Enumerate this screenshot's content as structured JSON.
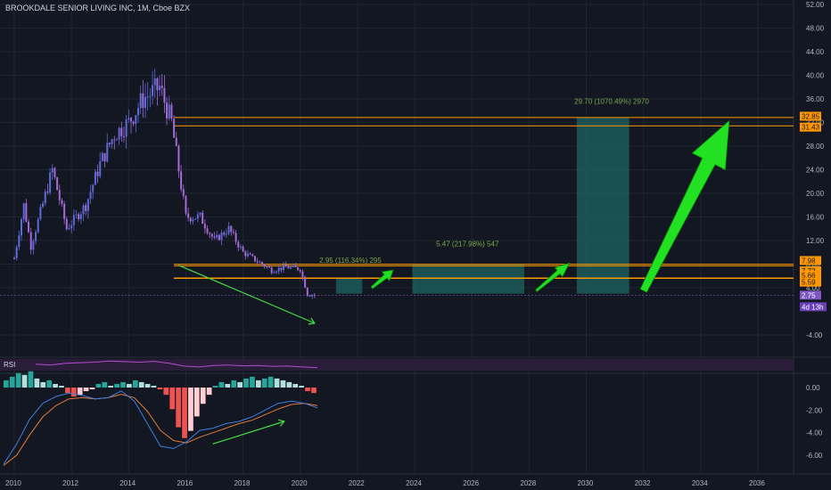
{
  "header": {
    "title": "BROOKDALE SENIOR LIVING INC, 1M, Cboe BZX"
  },
  "colors": {
    "background": "#131722",
    "candle_up": "#5b6bd8",
    "candle_down": "#a56ad6",
    "hline": "#ff9800",
    "box": "#1e6e6a",
    "arrow": "#22e022",
    "divergence": "#44dd44",
    "rsi_line": "#b34bd0",
    "macd_line": "#3d7fe0",
    "signal_line": "#e07b39",
    "hist_pos": "#26a69a",
    "hist_neg": "#ef5350",
    "hist_pos_light": "#b2dfdb",
    "hist_neg_light": "#ffcdd2"
  },
  "chart_data": [
    {
      "type": "candlestick",
      "pane": "price",
      "title": "BROOKDALE SENIOR LIVING INC, 1M, Cboe BZX",
      "x_ticks": [
        "2010",
        "2012",
        "2014",
        "2016",
        "2018",
        "2020",
        "2022",
        "2024",
        "2026",
        "2028",
        "2030",
        "2032",
        "2034",
        "2036"
      ],
      "y_ticks": [
        "52.00",
        "48.00",
        "44.00",
        "40.00",
        "36.00",
        "32.00",
        "28.00",
        "24.00",
        "20.00",
        "16.00",
        "12.00",
        "8.00",
        "4.00",
        "-4.00"
      ],
      "ylim": [
        -6,
        52
      ],
      "price_path": [
        [
          "2009-12",
          9
        ],
        [
          "2010-04",
          18
        ],
        [
          "2010-07",
          11
        ],
        [
          "2011-04",
          24
        ],
        [
          "2011-10",
          14
        ],
        [
          "2012-06",
          18
        ],
        [
          "2012-12",
          25
        ],
        [
          "2013-06",
          30
        ],
        [
          "2013-12",
          32
        ],
        [
          "2014-06",
          36
        ],
        [
          "2015-01",
          38
        ],
        [
          "2015-06",
          32
        ],
        [
          "2015-12",
          16
        ],
        [
          "2016-06",
          16
        ],
        [
          "2016-12",
          12
        ],
        [
          "2017-06",
          14
        ],
        [
          "2017-12",
          10
        ],
        [
          "2018-06",
          8.5
        ],
        [
          "2018-12",
          7
        ],
        [
          "2019-06",
          7.5
        ],
        [
          "2019-12",
          7.2
        ],
        [
          "2020-03",
          3
        ],
        [
          "2020-07",
          2.75
        ]
      ],
      "horizontal_lines": [
        32.85,
        31.43,
        7.98,
        7.72,
        5.66,
        5.59
      ],
      "price_tags": [
        {
          "text": "32.85",
          "value": 32.85,
          "color": "#ff9800"
        },
        {
          "text": "31.43",
          "value": 31.43,
          "color": "#ff9800"
        },
        {
          "text": "7.98",
          "value": 7.98,
          "color": "#ff9800"
        },
        {
          "text": "7.72",
          "value": 7.72,
          "color": "#ff9800"
        },
        {
          "text": "5.66",
          "value": 5.66,
          "color": "#ff9800"
        },
        {
          "text": "5.59",
          "value": 5.59,
          "color": "#ff9800"
        },
        {
          "text": "2.75",
          "value": 2.75,
          "color": "#7e57c2"
        }
      ],
      "countdown_tag": "4d 13h",
      "projection_boxes": [
        {
          "x0": "2021-03",
          "x1": "2022-02",
          "y0": 3.0,
          "y1": 5.6
        },
        {
          "x0": "2023-11",
          "x1": "2027-10",
          "y0": 3.0,
          "y1": 8.0
        },
        {
          "x0": "2029-08",
          "x1": "2031-06",
          "y0": 3.0,
          "y1": 32.8
        }
      ],
      "annotations": [
        {
          "text": "2.95 (116.34%) 295",
          "x": "2020-08",
          "y": 8.2
        },
        {
          "text": "5.47 (217.98%) 547",
          "x": "2024-09",
          "y": 11.0
        },
        {
          "text": "29.70 (1070.49%) 2970",
          "x": "2029-07",
          "y": 35.2
        }
      ],
      "arrows": [
        {
          "from": [
            "2022-06",
            4.0
          ],
          "to": [
            "2023-03",
            7.0
          ]
        },
        {
          "from": [
            "2028-03",
            3.5
          ],
          "to": [
            "2029-05",
            8.2
          ]
        },
        {
          "from": [
            "2032-00",
            3.5
          ],
          "to": [
            "2035-00",
            32.3
          ]
        }
      ],
      "divergence_line": {
        "from": [
          "2015-09",
          7.8
        ],
        "to": [
          "2020-06",
          -2.0
        ]
      }
    },
    {
      "type": "line",
      "pane": "rsi",
      "legend": "RSI",
      "series": [
        {
          "name": "RSI",
          "values": [
            55,
            52,
            58,
            60,
            62,
            66,
            64,
            62,
            65,
            58,
            48,
            45,
            50,
            52,
            49,
            50,
            47,
            48,
            45,
            42
          ]
        }
      ]
    },
    {
      "type": "bar+line",
      "pane": "macd",
      "y_ticks": [
        "0.00",
        "-2.00",
        "-4.00",
        "-6.00"
      ],
      "ylim": [
        -7.5,
        1.2
      ],
      "histogram": [
        0.4,
        0.6,
        0.8,
        0.7,
        0.9,
        0.5,
        0.3,
        0.4,
        0.2,
        0.1,
        -0.3,
        -0.5,
        -0.4,
        -0.2,
        -0.1,
        0.2,
        0.3,
        0.1,
        0.2,
        0.3,
        0.2,
        0.4,
        0.3,
        0.2,
        0.1,
        -0.1,
        -0.4,
        -1.2,
        -2.2,
        -2.8,
        -2.4,
        -1.6,
        -0.9,
        -0.4,
        0.1,
        0.3,
        0.2,
        0.4,
        0.3,
        0.5,
        0.6,
        0.4,
        0.5,
        0.6,
        0.5,
        0.4,
        0.3,
        0.2,
        0.1,
        -0.2,
        -0.3
      ],
      "macd_line": [
        -6.8,
        -5.0,
        -2.8,
        -1.4,
        -0.8,
        -0.5,
        -0.7,
        -1.0,
        -0.9,
        -0.3,
        -1.2,
        -3.2,
        -5.2,
        -5.4,
        -4.8,
        -3.8,
        -3.6,
        -3.2,
        -3.0,
        -2.6,
        -2.0,
        -1.4,
        -1.2,
        -1.4,
        -1.8
      ],
      "signal_line": [
        -6.9,
        -6.0,
        -4.2,
        -2.6,
        -1.6,
        -1.0,
        -0.9,
        -1.0,
        -0.9,
        -0.6,
        -0.9,
        -2.1,
        -3.8,
        -4.7,
        -4.9,
        -4.4,
        -4.0,
        -3.6,
        -3.2,
        -2.9,
        -2.4,
        -1.9,
        -1.5,
        -1.4,
        -1.6
      ],
      "divergence_line": {
        "from": [
          "2017-03",
          -5.0
        ],
        "to": [
          "2021-00",
          -3.0
        ]
      }
    }
  ]
}
